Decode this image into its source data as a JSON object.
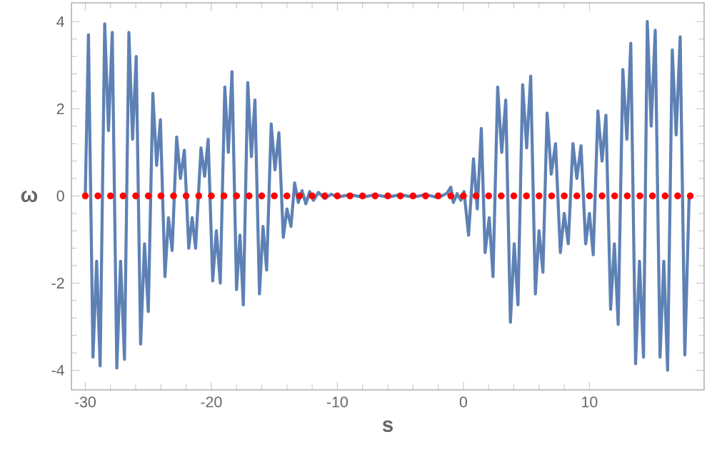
{
  "chart_data": {
    "type": "line",
    "xlabel": "s",
    "ylabel": "ω",
    "xlim": [
      -31.1,
      19.1
    ],
    "ylim": [
      -4.45,
      4.43
    ],
    "xticks": [
      -30,
      -20,
      -10,
      0,
      10
    ],
    "yticks": [
      -4,
      -2,
      0,
      2,
      4
    ],
    "grid": false,
    "series": [
      {
        "color": "#5e81b5",
        "marker": "none",
        "line_style": "solid",
        "x": [
          -30,
          -29.75,
          -29.39,
          -29.1,
          -28.82,
          -28.46,
          -28.16,
          -27.86,
          -27.5,
          -27.2,
          -26.89,
          -26.54,
          -26.25,
          -25.96,
          -25.61,
          -25.3,
          -25.0,
          -24.64,
          -24.34,
          -24.04,
          -23.68,
          -23.4,
          -23.11,
          -22.75,
          -22.45,
          -22.14,
          -21.79,
          -21.52,
          -21.25,
          -20.82,
          -20.53,
          -20.25,
          -19.89,
          -19.6,
          -19.29,
          -18.93,
          -18.65,
          -18.36,
          -18.0,
          -17.73,
          -17.46,
          -17.11,
          -16.82,
          -16.54,
          -16.18,
          -15.9,
          -15.61,
          -15.25,
          -14.95,
          -14.64,
          -14.29,
          -14.0,
          -13.68,
          -13.39,
          -13.1,
          -12.8,
          -12.5,
          -12.2,
          -11.9,
          -11.5,
          -11.0,
          -10.5,
          -10,
          -9,
          -8,
          -7,
          -6,
          -5,
          -4,
          -3,
          -2,
          -1.3,
          -1.0,
          -0.8,
          -0.5,
          -0.2,
          0.05,
          0.41,
          0.8,
          1.1,
          1.42,
          1.72,
          2.05,
          2.35,
          2.72,
          3.04,
          3.36,
          3.73,
          4.03,
          4.33,
          4.7,
          5.02,
          5.34,
          5.71,
          6.0,
          6.31,
          6.64,
          6.97,
          7.31,
          7.69,
          8.0,
          8.32,
          8.69,
          9.0,
          9.33,
          9.7,
          10.0,
          10.3,
          10.67,
          11.0,
          11.31,
          11.68,
          11.98,
          12.28,
          12.65,
          12.97,
          13.28,
          13.66,
          13.97,
          14.29,
          14.59,
          14.9,
          15.22,
          15.6,
          15.9,
          16.2,
          16.57,
          16.88,
          17.2,
          17.57,
          17.91
        ],
        "values": [
          0,
          3.7,
          -3.7,
          -1.5,
          -3.9,
          3.95,
          1.5,
          3.75,
          -3.95,
          -1.5,
          -3.75,
          3.75,
          1.3,
          3.2,
          -3.4,
          -1.1,
          -2.65,
          2.35,
          0.7,
          1.75,
          -1.85,
          -0.5,
          -1.25,
          1.35,
          0.4,
          1.05,
          -1.2,
          -0.5,
          -1.2,
          1.1,
          0.45,
          1.3,
          -1.95,
          -0.8,
          -2.0,
          2.5,
          1.0,
          2.85,
          -2.15,
          -0.9,
          -2.5,
          2.6,
          0.9,
          2.2,
          -2.25,
          -0.7,
          -1.7,
          1.65,
          0.6,
          1.45,
          -0.95,
          -0.3,
          -0.7,
          0.3,
          -0.15,
          0.12,
          -0.18,
          0.1,
          -0.1,
          0.08,
          -0.06,
          0.04,
          -0.03,
          0.03,
          -0.03,
          0.03,
          -0.03,
          0.03,
          -0.03,
          0.03,
          -0.04,
          0.06,
          0.2,
          -0.15,
          0.05,
          -0.1,
          0.1,
          -0.9,
          0.85,
          -0.3,
          1.55,
          -1.3,
          -0.5,
          -1.85,
          2.5,
          1.0,
          2.2,
          -2.9,
          -1.1,
          -2.5,
          2.55,
          1.1,
          2.75,
          -2.25,
          -0.8,
          -1.75,
          1.9,
          0.5,
          1.2,
          -1.3,
          -0.4,
          -1.1,
          1.2,
          0.4,
          1.15,
          -1.1,
          -0.4,
          -1.35,
          1.95,
          0.8,
          1.85,
          -2.6,
          -1.1,
          -2.95,
          2.9,
          1.3,
          3.5,
          -3.85,
          -1.5,
          -3.7,
          4.0,
          1.6,
          3.8,
          -3.7,
          -1.5,
          -4.0,
          3.35,
          1.4,
          3.65,
          -3.65,
          0
        ]
      },
      {
        "type": "scatter",
        "color": "#ff0000",
        "marker": "circle",
        "x": [
          -30,
          -29,
          -28,
          -27,
          -26,
          -25,
          -24,
          -23,
          -22,
          -21,
          -20,
          -19,
          -18,
          -17,
          -16,
          -15,
          -14,
          -13,
          -12,
          -11,
          -10,
          -9,
          -8,
          -7,
          -6,
          -5,
          -4,
          -3,
          -2,
          -1,
          0,
          1,
          2,
          3,
          4,
          5,
          6,
          7,
          8,
          9,
          10,
          11,
          12,
          13,
          14,
          15,
          16,
          17,
          18
        ],
        "values": [
          0,
          0,
          0,
          0,
          0,
          0,
          0,
          0,
          0,
          0,
          0,
          0,
          0,
          0,
          0,
          0,
          0,
          0,
          0,
          0,
          0,
          0,
          0,
          0,
          0,
          0,
          0,
          0,
          0,
          0,
          0,
          0,
          0,
          0,
          0,
          0,
          0,
          0,
          0,
          0,
          0,
          0,
          0,
          0,
          0,
          0,
          0,
          0,
          0
        ]
      }
    ]
  }
}
